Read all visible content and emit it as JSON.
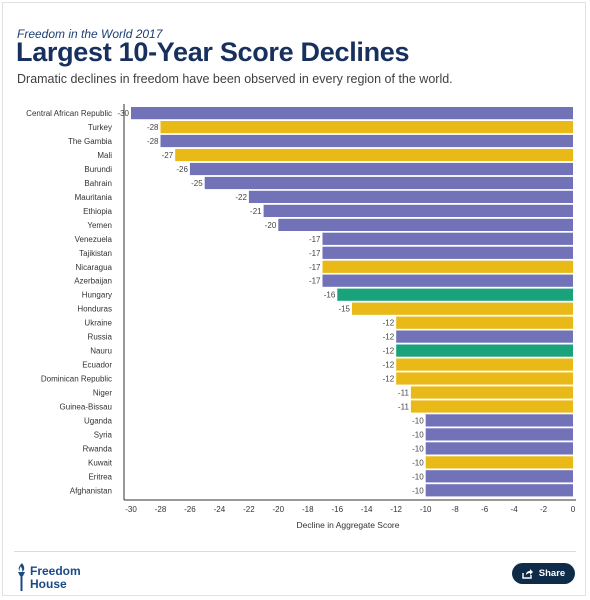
{
  "header": {
    "kicker": "Freedom in the World 2017",
    "title": "Largest 10-Year Score Declines",
    "subtitle": "Dramatic declines in freedom have been observed in every region of the world."
  },
  "chart_data": {
    "type": "bar",
    "orientation": "horizontal",
    "xlabel": "Decline in Aggregate Score",
    "xlim": [
      -30,
      0
    ],
    "xticks": [
      -30,
      -28,
      -26,
      -24,
      -22,
      -20,
      -18,
      -16,
      -14,
      -12,
      -10,
      -8,
      -6,
      -4,
      -2,
      0
    ],
    "grid": false,
    "categories": [
      "Central African Republic",
      "Turkey",
      "The Gambia",
      "Mali",
      "Burundi",
      "Bahrain",
      "Mauritania",
      "Ethiopia",
      "Yemen",
      "Venezuela",
      "Tajikistan",
      "Nicaragua",
      "Azerbaijan",
      "Hungary",
      "Honduras",
      "Ukraine",
      "Russia",
      "Nauru",
      "Ecuador",
      "Dominican Republic",
      "Niger",
      "Guinea-Bissau",
      "Uganda",
      "Syria",
      "Rwanda",
      "Kuwait",
      "Eritrea",
      "Afghanistan"
    ],
    "values": [
      -30,
      -28,
      -28,
      -27,
      -26,
      -25,
      -22,
      -21,
      -20,
      -17,
      -17,
      -17,
      -17,
      -16,
      -15,
      -12,
      -12,
      -12,
      -12,
      -12,
      -11,
      -11,
      -10,
      -10,
      -10,
      -10,
      -10,
      -10
    ],
    "status": [
      "notfree",
      "partlyfree",
      "notfree",
      "partlyfree",
      "notfree",
      "notfree",
      "notfree",
      "notfree",
      "notfree",
      "notfree",
      "notfree",
      "partlyfree",
      "notfree",
      "free",
      "partlyfree",
      "partlyfree",
      "notfree",
      "free",
      "partlyfree",
      "partlyfree",
      "partlyfree",
      "partlyfree",
      "notfree",
      "notfree",
      "notfree",
      "partlyfree",
      "notfree",
      "notfree"
    ],
    "colors": {
      "notfree": "#7272b8",
      "partlyfree": "#e8b917",
      "free": "#1aa27a"
    }
  },
  "footer": {
    "logo_line1": "Freedom",
    "logo_line2": "House",
    "share_label": "Share",
    "share_icon": "share-icon"
  }
}
